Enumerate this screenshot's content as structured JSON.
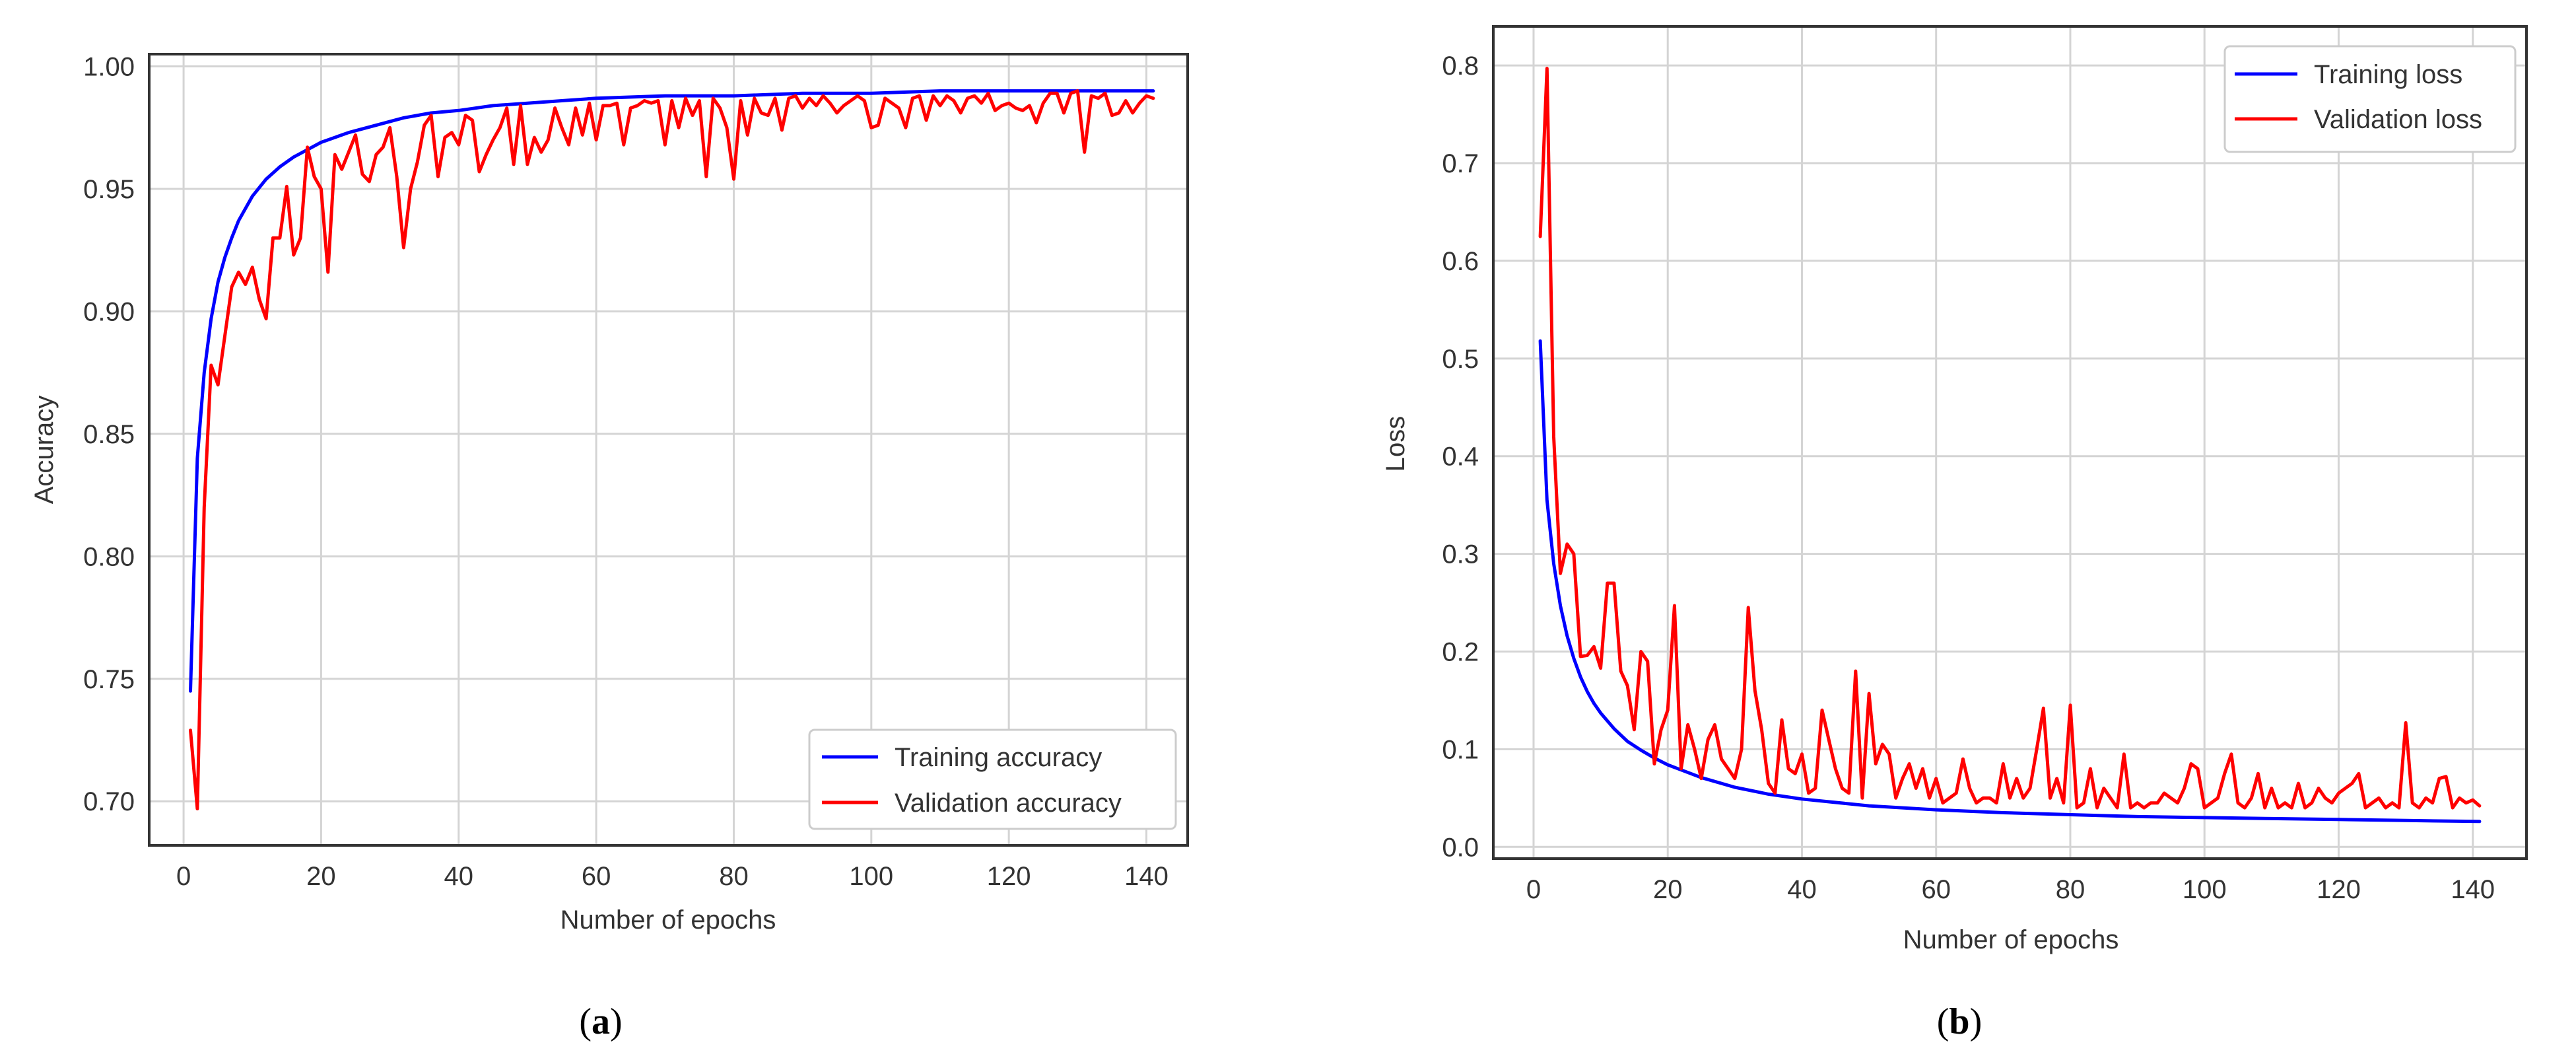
{
  "colors": {
    "training": "#0000ff",
    "validation": "#ff0000",
    "grid": "#d4d4d4",
    "frame": "#333333"
  },
  "chart_data": [
    {
      "type": "line",
      "caption_letter": "a",
      "caption_open": "(",
      "caption_close": ")",
      "xlabel": "Number of epochs",
      "ylabel": "Accuracy",
      "xlim": [
        -5,
        146
      ],
      "ylim": [
        0.682,
        1.005
      ],
      "xticks": [
        0,
        20,
        40,
        60,
        80,
        100,
        120,
        140
      ],
      "xtick_labels": [
        "0",
        "20",
        "40",
        "60",
        "80",
        "100",
        "120",
        "140"
      ],
      "yticks": [
        0.7,
        0.75,
        0.8,
        0.85,
        0.9,
        0.95,
        1.0
      ],
      "ytick_labels": [
        "0.70",
        "0.75",
        "0.80",
        "0.85",
        "0.90",
        "0.95",
        "1.00"
      ],
      "legend_position": "lower-right",
      "series": [
        {
          "name": "Training accuracy",
          "color": "#0000ff",
          "x": [
            1,
            2,
            3,
            4,
            5,
            6,
            7,
            8,
            9,
            10,
            12,
            14,
            16,
            18,
            20,
            24,
            28,
            32,
            36,
            40,
            45,
            50,
            55,
            60,
            70,
            80,
            90,
            100,
            110,
            120,
            130,
            141
          ],
          "values": [
            0.745,
            0.84,
            0.875,
            0.897,
            0.912,
            0.922,
            0.93,
            0.937,
            0.942,
            0.947,
            0.954,
            0.959,
            0.963,
            0.966,
            0.969,
            0.973,
            0.976,
            0.979,
            0.981,
            0.982,
            0.984,
            0.985,
            0.986,
            0.987,
            0.988,
            0.988,
            0.989,
            0.989,
            0.99,
            0.99,
            0.99,
            0.99
          ]
        },
        {
          "name": "Validation accuracy",
          "color": "#ff0000",
          "x": [
            1,
            2,
            3,
            4,
            5,
            6,
            7,
            8,
            9,
            10,
            11,
            12,
            13,
            14,
            15,
            16,
            17,
            18,
            19,
            20,
            21,
            22,
            23,
            24,
            25,
            26,
            27,
            28,
            29,
            30,
            31,
            32,
            33,
            34,
            35,
            36,
            37,
            38,
            39,
            40,
            41,
            42,
            43,
            44,
            45,
            46,
            47,
            48,
            49,
            50,
            51,
            52,
            53,
            54,
            55,
            56,
            57,
            58,
            59,
            60,
            61,
            62,
            63,
            64,
            65,
            66,
            67,
            68,
            69,
            70,
            71,
            72,
            73,
            74,
            75,
            76,
            77,
            78,
            79,
            80,
            81,
            82,
            83,
            84,
            85,
            86,
            87,
            88,
            89,
            90,
            91,
            92,
            93,
            94,
            95,
            96,
            97,
            98,
            99,
            100,
            101,
            102,
            103,
            104,
            105,
            106,
            107,
            108,
            109,
            110,
            111,
            112,
            113,
            114,
            115,
            116,
            117,
            118,
            119,
            120,
            121,
            122,
            123,
            124,
            125,
            126,
            127,
            128,
            129,
            130,
            131,
            132,
            133,
            134,
            135,
            136,
            137,
            138,
            139,
            140,
            141
          ],
          "values": [
            0.729,
            0.697,
            0.82,
            0.878,
            0.87,
            0.89,
            0.91,
            0.916,
            0.911,
            0.918,
            0.905,
            0.897,
            0.93,
            0.93,
            0.951,
            0.923,
            0.93,
            0.967,
            0.955,
            0.95,
            0.916,
            0.964,
            0.958,
            0.965,
            0.972,
            0.956,
            0.953,
            0.964,
            0.967,
            0.975,
            0.955,
            0.926,
            0.95,
            0.961,
            0.976,
            0.98,
            0.955,
            0.971,
            0.973,
            0.968,
            0.98,
            0.978,
            0.957,
            0.964,
            0.97,
            0.975,
            0.983,
            0.96,
            0.984,
            0.96,
            0.971,
            0.965,
            0.97,
            0.983,
            0.975,
            0.968,
            0.983,
            0.972,
            0.985,
            0.97,
            0.984,
            0.984,
            0.985,
            0.968,
            0.983,
            0.984,
            0.986,
            0.985,
            0.986,
            0.968,
            0.986,
            0.975,
            0.987,
            0.98,
            0.986,
            0.955,
            0.987,
            0.983,
            0.975,
            0.954,
            0.986,
            0.972,
            0.987,
            0.981,
            0.98,
            0.987,
            0.974,
            0.987,
            0.988,
            0.983,
            0.987,
            0.984,
            0.988,
            0.985,
            0.981,
            0.984,
            0.986,
            0.988,
            0.986,
            0.975,
            0.976,
            0.987,
            0.985,
            0.983,
            0.975,
            0.987,
            0.988,
            0.978,
            0.988,
            0.984,
            0.988,
            0.986,
            0.981,
            0.987,
            0.988,
            0.985,
            0.989,
            0.982,
            0.984,
            0.985,
            0.983,
            0.982,
            0.984,
            0.977,
            0.985,
            0.989,
            0.989,
            0.981,
            0.989,
            0.99,
            0.965,
            0.988,
            0.987,
            0.989,
            0.98,
            0.981,
            0.986,
            0.981,
            0.985,
            0.988,
            0.987
          ]
        }
      ]
    },
    {
      "type": "line",
      "caption_letter": "b",
      "caption_open": "(",
      "caption_close": ")",
      "xlabel": "Number of epochs",
      "ylabel": "Loss",
      "xlim": [
        -6,
        148
      ],
      "ylim": [
        -0.012,
        0.84
      ],
      "xticks": [
        0,
        20,
        40,
        60,
        80,
        100,
        120,
        140
      ],
      "xtick_labels": [
        "0",
        "20",
        "40",
        "60",
        "80",
        "100",
        "120",
        "140"
      ],
      "yticks": [
        0.0,
        0.1,
        0.2,
        0.3,
        0.4,
        0.5,
        0.6,
        0.7,
        0.8
      ],
      "ytick_labels": [
        "0.0",
        "0.1",
        "0.2",
        "0.3",
        "0.4",
        "0.5",
        "0.6",
        "0.7",
        "0.8"
      ],
      "legend_position": "top-right",
      "series": [
        {
          "name": "Training loss",
          "color": "#0000ff",
          "x": [
            1,
            2,
            3,
            4,
            5,
            6,
            7,
            8,
            9,
            10,
            12,
            14,
            16,
            18,
            20,
            25,
            30,
            35,
            40,
            50,
            60,
            70,
            80,
            90,
            100,
            110,
            120,
            130,
            141
          ],
          "values": [
            0.518,
            0.355,
            0.29,
            0.247,
            0.216,
            0.193,
            0.174,
            0.159,
            0.147,
            0.137,
            0.121,
            0.108,
            0.099,
            0.091,
            0.084,
            0.071,
            0.061,
            0.054,
            0.049,
            0.042,
            0.038,
            0.035,
            0.033,
            0.031,
            0.03,
            0.029,
            0.028,
            0.027,
            0.026
          ]
        },
        {
          "name": "Validation loss",
          "color": "#ff0000",
          "x": [
            1,
            2,
            3,
            4,
            5,
            6,
            7,
            8,
            9,
            10,
            11,
            12,
            13,
            14,
            15,
            16,
            17,
            18,
            19,
            20,
            21,
            22,
            23,
            24,
            25,
            26,
            27,
            28,
            29,
            30,
            31,
            32,
            33,
            34,
            35,
            36,
            37,
            38,
            39,
            40,
            41,
            42,
            43,
            44,
            45,
            46,
            47,
            48,
            49,
            50,
            51,
            52,
            53,
            54,
            55,
            56,
            57,
            58,
            59,
            60,
            61,
            62,
            63,
            64,
            65,
            66,
            67,
            68,
            69,
            70,
            71,
            72,
            73,
            74,
            75,
            76,
            77,
            78,
            79,
            80,
            81,
            82,
            83,
            84,
            85,
            86,
            87,
            88,
            89,
            90,
            91,
            92,
            93,
            94,
            95,
            96,
            97,
            98,
            99,
            100,
            101,
            102,
            103,
            104,
            105,
            106,
            107,
            108,
            109,
            110,
            111,
            112,
            113,
            114,
            115,
            116,
            117,
            118,
            119,
            120,
            121,
            122,
            123,
            124,
            125,
            126,
            127,
            128,
            129,
            130,
            131,
            132,
            133,
            134,
            135,
            136,
            137,
            138,
            139,
            140,
            141
          ],
          "values": [
            0.625,
            0.797,
            0.42,
            0.28,
            0.31,
            0.3,
            0.195,
            0.196,
            0.205,
            0.183,
            0.27,
            0.27,
            0.18,
            0.165,
            0.12,
            0.2,
            0.19,
            0.085,
            0.12,
            0.14,
            0.247,
            0.08,
            0.125,
            0.1,
            0.07,
            0.11,
            0.125,
            0.09,
            0.08,
            0.07,
            0.1,
            0.245,
            0.16,
            0.12,
            0.065,
            0.055,
            0.13,
            0.08,
            0.075,
            0.095,
            0.055,
            0.06,
            0.14,
            0.11,
            0.08,
            0.06,
            0.055,
            0.18,
            0.05,
            0.157,
            0.085,
            0.105,
            0.095,
            0.05,
            0.07,
            0.085,
            0.06,
            0.08,
            0.05,
            0.07,
            0.045,
            0.05,
            0.055,
            0.09,
            0.06,
            0.045,
            0.05,
            0.05,
            0.045,
            0.085,
            0.05,
            0.07,
            0.05,
            0.06,
            0.1,
            0.142,
            0.05,
            0.07,
            0.045,
            0.145,
            0.04,
            0.045,
            0.08,
            0.04,
            0.06,
            0.05,
            0.04,
            0.095,
            0.04,
            0.045,
            0.04,
            0.045,
            0.045,
            0.055,
            0.05,
            0.045,
            0.06,
            0.085,
            0.08,
            0.04,
            0.045,
            0.05,
            0.075,
            0.095,
            0.045,
            0.04,
            0.05,
            0.075,
            0.04,
            0.06,
            0.04,
            0.045,
            0.04,
            0.065,
            0.04,
            0.045,
            0.06,
            0.05,
            0.045,
            0.055,
            0.06,
            0.065,
            0.075,
            0.04,
            0.045,
            0.05,
            0.04,
            0.045,
            0.04,
            0.127,
            0.045,
            0.04,
            0.05,
            0.045,
            0.07,
            0.072,
            0.04,
            0.05,
            0.045,
            0.048,
            0.042
          ]
        }
      ]
    }
  ]
}
